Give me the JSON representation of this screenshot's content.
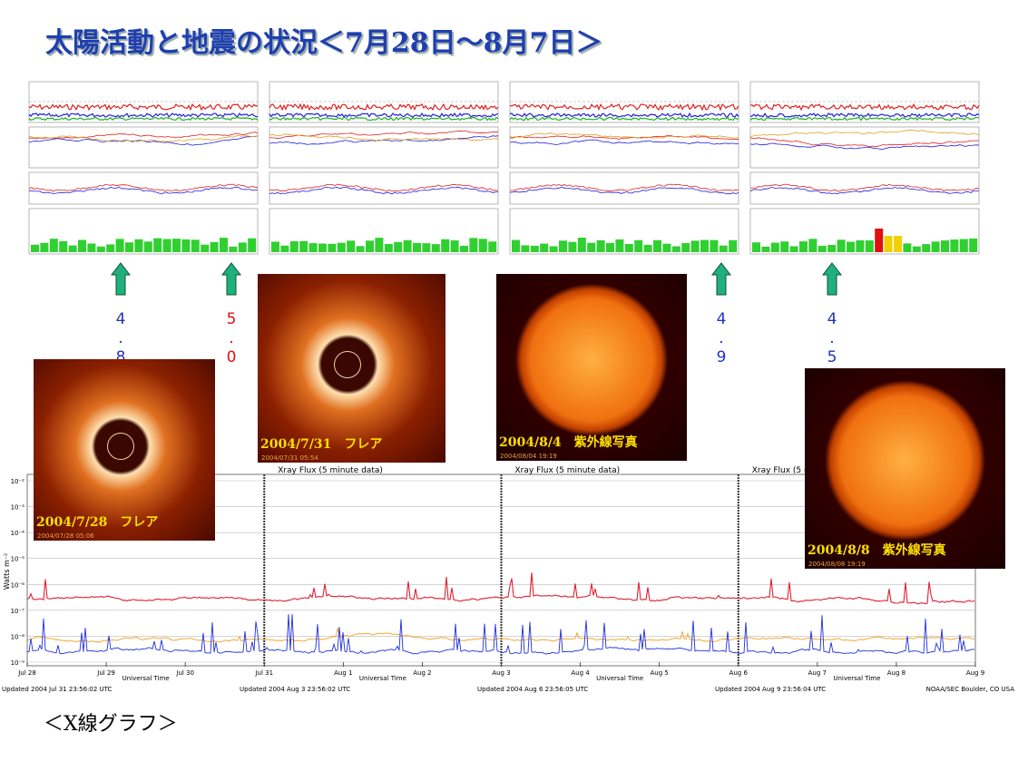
{
  "title": "太陽活動と地震の状況＜7月28日～8月7日＞",
  "earthquakes": [
    {
      "magnitude": "4.8",
      "color": "#2233bb"
    },
    {
      "magnitude": "5.0",
      "color": "#e01010"
    },
    {
      "magnitude": "4.9",
      "color": "#2233bb"
    },
    {
      "magnitude": "4.5",
      "color": "#2233bb"
    }
  ],
  "photos": [
    {
      "caption": "2004/7/28　フレア",
      "timestamp": "2004/07/28 05:06",
      "kind": "coronagraph"
    },
    {
      "caption": "2004/7/31　フレア",
      "timestamp": "2004/07/31 05:54",
      "kind": "coronagraph"
    },
    {
      "caption": "2004/8/4　紫外線写真",
      "timestamp": "2004/08/04 19:19",
      "kind": "disk"
    },
    {
      "caption": "2004/8/8　紫外線写真",
      "timestamp": "2004/08/08 19:19",
      "kind": "disk"
    }
  ],
  "xray": {
    "title": "Xray Flux (5 minute data)",
    "y_label": "Watts m⁻²",
    "x_label": "Universal Time",
    "x_ticks": [
      "Jul 28",
      "Jul 29",
      "Jul 30",
      "Jul 31",
      "Aug 1",
      "Aug 2",
      "Aug 3",
      "Aug 4",
      "Aug 5",
      "Aug 6",
      "Aug 7",
      "Aug 8",
      "Aug 9"
    ],
    "y_ticks": [
      "10⁻²",
      "10⁻³",
      "10⁻⁴",
      "10⁻⁵",
      "10⁻⁶",
      "10⁻⁷",
      "10⁻⁸",
      "10⁻⁹"
    ],
    "updated": [
      "Updated 2004 Jul 31 23:56:02 UTC",
      "Updated 2004 Aug 3 23:56:02 UTC",
      "Updated 2004 Aug 6 23:56:05 UTC",
      "Updated 2004 Aug 9 23:56:04 UTC"
    ],
    "source": "NOAA/SEC Boulder, CO USA"
  },
  "footer": "＜X線グラフ＞"
}
